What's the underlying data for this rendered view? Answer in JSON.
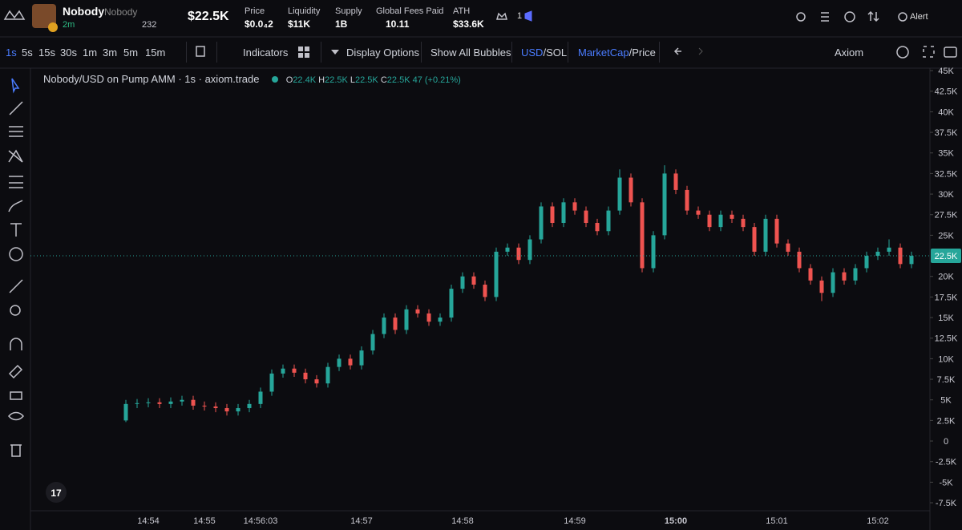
{
  "header": {
    "name": "Nobody",
    "ticker": "Nobody",
    "age": "2m",
    "viewers": "232",
    "market_cap": "$22.5K",
    "stats": [
      {
        "label": "Price",
        "value": "$0.0₄2"
      },
      {
        "label": "Liquidity",
        "value": "$11K"
      },
      {
        "label": "Supply",
        "value": "1B"
      },
      {
        "label": "Global Fees Paid",
        "value": "10.11"
      },
      {
        "label": "ATH",
        "value": "$33.6K"
      }
    ],
    "count": "1",
    "alert": "Alert"
  },
  "toolbar": {
    "timeframes": [
      "1s",
      "5s",
      "15s",
      "30s",
      "1m",
      "3m",
      "5m",
      "15m"
    ],
    "indicators": "Indicators",
    "display_options": "Display Options",
    "bubbles": "Show All Bubbles",
    "usd": "USD",
    "sol": "/SOL",
    "marketcap": "MarketCap",
    "price": "/Price",
    "source": "Axiom"
  },
  "legend": {
    "title": "Nobody/USD on Pump AMM · 1s · axiom.trade",
    "o": "O",
    "o_value": "22.4K",
    "h": "H",
    "h_value": "22.5K",
    "l": "L",
    "l_value": "22.5K",
    "c": "C",
    "c_value": "22.5K",
    "change": "47 (+0.21%)"
  },
  "chart_data": {
    "type": "candlestick",
    "up_color": "#26a69a",
    "down_color": "#ef5350",
    "categories": [
      null,
      null,
      "14:54",
      null,
      null,
      null,
      null,
      "14:55",
      null,
      null,
      null,
      null,
      "14:56:03",
      null,
      null,
      null,
      null,
      null,
      null,
      null,
      null,
      "14:57",
      null,
      null,
      null,
      null,
      null,
      null,
      null,
      null,
      "14:58",
      null,
      null,
      null,
      null,
      null,
      null,
      null,
      null,
      null,
      "14:59",
      null,
      null,
      null,
      null,
      null,
      null,
      null,
      null,
      "15:00",
      null,
      null,
      null,
      null,
      null,
      null,
      null,
      null,
      "15:01",
      null,
      null,
      null,
      null,
      null,
      null,
      null,
      null,
      "15:02",
      null,
      null,
      null
    ],
    "open": [
      2500,
      4500,
      4600,
      4700,
      4500,
      4800,
      5000,
      4300,
      4200,
      4000,
      3600,
      4000,
      4500,
      6000,
      8200,
      8800,
      8300,
      7500,
      7000,
      9000,
      10000,
      9200,
      11000,
      13000,
      15000,
      13500,
      16000,
      15500,
      14500,
      15000,
      18500,
      20000,
      19000,
      17500,
      23000,
      23500,
      22000,
      24500,
      28500,
      26500,
      29000,
      28000,
      26500,
      25500,
      28000,
      32000,
      29000,
      21000,
      25000,
      32500,
      30500,
      28000,
      27500,
      26000,
      27500,
      27000,
      26000,
      23000,
      27000,
      24000,
      23000,
      21000,
      19500,
      18000,
      20500,
      19500,
      21000,
      22500,
      23000,
      23500,
      21500
    ],
    "high": [
      5000,
      5100,
      5200,
      5200,
      5300,
      5500,
      5500,
      4800,
      4700,
      4500,
      4500,
      5000,
      6500,
      8700,
      9300,
      9300,
      8800,
      8000,
      9500,
      10500,
      10500,
      11500,
      13500,
      15500,
      15500,
      16500,
      16500,
      16000,
      15500,
      19000,
      20500,
      20500,
      19500,
      23500,
      24000,
      24000,
      25000,
      29000,
      29000,
      29500,
      29500,
      28500,
      27000,
      28500,
      33000,
      32500,
      29500,
      25500,
      33500,
      33000,
      31000,
      28500,
      28000,
      28000,
      28000,
      27500,
      26500,
      27500,
      27500,
      24500,
      23500,
      21500,
      20000,
      21000,
      21000,
      21500,
      23000,
      23500,
      24500,
      24000,
      23000
    ],
    "low": [
      2300,
      4000,
      4100,
      4000,
      4000,
      4300,
      3800,
      3700,
      3500,
      3100,
      3100,
      3500,
      4000,
      5500,
      7700,
      7800,
      7000,
      6500,
      6500,
      8500,
      8700,
      8700,
      10500,
      12500,
      13000,
      13000,
      15000,
      14000,
      14000,
      14500,
      18000,
      18500,
      17000,
      17000,
      22500,
      21500,
      21500,
      24000,
      26000,
      26000,
      27500,
      26000,
      25000,
      25000,
      27500,
      28500,
      20500,
      20500,
      24500,
      30000,
      27500,
      27000,
      25500,
      25500,
      26500,
      25500,
      22500,
      22500,
      23500,
      22500,
      20500,
      19000,
      17000,
      17500,
      19000,
      19000,
      20500,
      22000,
      22500,
      21000,
      21000
    ],
    "close": [
      4500,
      4600,
      4700,
      4500,
      4800,
      5000,
      4300,
      4200,
      4000,
      3600,
      4000,
      4500,
      6000,
      8200,
      8800,
      8300,
      7500,
      7000,
      9000,
      10000,
      9200,
      11000,
      13000,
      15000,
      13500,
      16000,
      15500,
      14500,
      15000,
      18500,
      20000,
      19000,
      17500,
      23000,
      23500,
      22000,
      24500,
      28500,
      26500,
      29000,
      28000,
      26500,
      25500,
      28000,
      32000,
      29000,
      21000,
      25000,
      32500,
      30500,
      28000,
      27500,
      26000,
      27500,
      27000,
      26000,
      23000,
      27000,
      24000,
      23000,
      21000,
      19500,
      18000,
      20500,
      19500,
      21000,
      22500,
      23000,
      23500,
      21500,
      22500
    ],
    "ylim": [
      -9250,
      45300
    ],
    "yticks": [
      {
        "value": 45000,
        "label": "45K"
      },
      {
        "value": 42500,
        "label": "42.5K"
      },
      {
        "value": 40000,
        "label": "40K"
      },
      {
        "value": 37500,
        "label": "37.5K"
      },
      {
        "value": 35000,
        "label": "35K"
      },
      {
        "value": 32500,
        "label": "32.5K"
      },
      {
        "value": 30000,
        "label": "30K"
      },
      {
        "value": 27500,
        "label": "27.5K"
      },
      {
        "value": 25000,
        "label": "25K"
      },
      {
        "value": 20000,
        "label": "20K"
      },
      {
        "value": 17500,
        "label": "17.5K"
      },
      {
        "value": 15000,
        "label": "15K"
      },
      {
        "value": 12500,
        "label": "12.5K"
      },
      {
        "value": 10000,
        "label": "10K"
      },
      {
        "value": 7500,
        "label": "7.5K"
      },
      {
        "value": 5000,
        "label": "5K"
      },
      {
        "value": 2500,
        "label": "2.5K"
      },
      0,
      {
        "value": -2500,
        "label": "-2.5K"
      },
      {
        "value": -5000,
        "label": "-5K"
      },
      {
        "value": -7500,
        "label": "-7.5K"
      }
    ],
    "grid": false,
    "last_price": {
      "value": 22500,
      "label": "22.5K"
    }
  }
}
